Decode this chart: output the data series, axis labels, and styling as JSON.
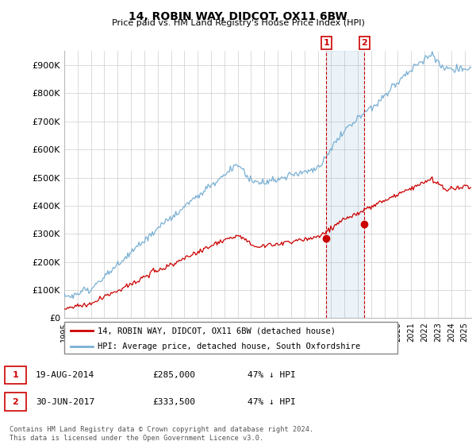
{
  "title": "14, ROBIN WAY, DIDCOT, OX11 6BW",
  "subtitle": "Price paid vs. HM Land Registry's House Price Index (HPI)",
  "ylim": [
    0,
    950000
  ],
  "yticks": [
    0,
    100000,
    200000,
    300000,
    400000,
    500000,
    600000,
    700000,
    800000,
    900000
  ],
  "ytick_labels": [
    "£0",
    "£100K",
    "£200K",
    "£300K",
    "£400K",
    "£500K",
    "£600K",
    "£700K",
    "£800K",
    "£900K"
  ],
  "hpi_color": "#7ab0d4",
  "price_color": "#cc0000",
  "annotation_color": "#cc0000",
  "grid_color": "#cccccc",
  "background_color": "#ffffff",
  "legend_label_price": "14, ROBIN WAY, DIDCOT, OX11 6BW (detached house)",
  "legend_label_hpi": "HPI: Average price, detached house, South Oxfordshire",
  "transaction1_date": "19-AUG-2014",
  "transaction1_price": "£285,000",
  "transaction1_pct": "47% ↓ HPI",
  "transaction2_date": "30-JUN-2017",
  "transaction2_price": "£333,500",
  "transaction2_pct": "47% ↓ HPI",
  "footer": "Contains HM Land Registry data © Crown copyright and database right 2024.\nThis data is licensed under the Open Government Licence v3.0.",
  "marker1_x": 2014.63,
  "marker1_y": 285000,
  "marker2_x": 2017.5,
  "marker2_y": 333500,
  "vline1_x": 2014.63,
  "vline2_x": 2017.5,
  "xmin": 1995.0,
  "xmax": 2025.5,
  "hpi_seed": 101,
  "price_seed": 202
}
